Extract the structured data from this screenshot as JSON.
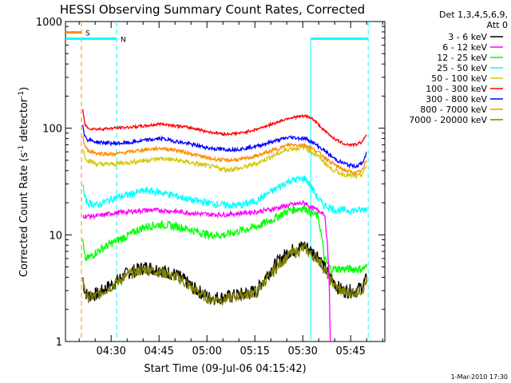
{
  "chart_data": {
    "type": "line",
    "title": "HESSI Observing Summary Count Rates, Corrected",
    "xlabel": "Start Time (09-Jul-06 04:15:42)",
    "ylabel_main": "Corrected Count Rate (s",
    "ylabel_sup1": "-1",
    "ylabel_mid": " detector",
    "ylabel_sup2": "-1",
    "ylabel_end": ")",
    "y_scale": "log",
    "ylim": [
      1,
      1000
    ],
    "xlim_min": [
      0,
      100
    ],
    "x_unit": "minutes after 04:15:42",
    "y_tick_labels": [
      {
        "value": 1,
        "label": "1"
      },
      {
        "value": 10,
        "label": "10"
      },
      {
        "value": 100,
        "label": "100"
      },
      {
        "value": 1000,
        "label": "1000"
      }
    ],
    "x_tick_labels": [
      {
        "t": 14.3,
        "label": "04:30"
      },
      {
        "t": 29.3,
        "label": "04:45"
      },
      {
        "t": 44.3,
        "label": "05:00"
      },
      {
        "t": 59.3,
        "label": "05:15"
      },
      {
        "t": 74.3,
        "label": "05:30"
      },
      {
        "t": 89.3,
        "label": "05:45"
      }
    ],
    "legend_header": [
      "Det 1,3,4,5,6,9,",
      "Att 0"
    ],
    "legend_position": "right-outside",
    "series": [
      {
        "name": "3 - 6 keV",
        "color": "#000000"
      },
      {
        "name": "6 - 12 keV",
        "color": "#ff00ff"
      },
      {
        "name": "12 - 25 keV",
        "color": "#00ff00"
      },
      {
        "name": "25 - 50 keV",
        "color": "#00ffff"
      },
      {
        "name": "50 - 100 keV",
        "color": "#d2c800"
      },
      {
        "name": "100 - 300 keV",
        "color": "#ff0000"
      },
      {
        "name": "300 - 800 keV",
        "color": "#0000ff"
      },
      {
        "name": "800 - 7000 keV",
        "color": "#ff8c00"
      },
      {
        "name": "7000 - 20000 keV",
        "color": "#808000"
      }
    ],
    "curves": {
      "x": [
        5.4,
        6,
        7,
        10,
        15,
        20,
        25,
        30,
        35,
        40,
        45,
        50,
        55,
        60,
        65,
        70,
        75,
        77,
        79,
        81,
        83,
        85,
        87,
        89,
        91,
        93,
        94.5
      ],
      "red": [
        150,
        110,
        100,
        98,
        100,
        102,
        105,
        110,
        105,
        100,
        92,
        88,
        90,
        98,
        110,
        125,
        130,
        125,
        110,
        95,
        85,
        77,
        72,
        70,
        70,
        75,
        90
      ],
      "blue": [
        110,
        85,
        78,
        74,
        72,
        73,
        77,
        80,
        75,
        70,
        65,
        63,
        64,
        68,
        75,
        82,
        80,
        75,
        68,
        62,
        55,
        50,
        47,
        45,
        44,
        47,
        60
      ],
      "orange": [
        85,
        68,
        62,
        58,
        57,
        60,
        63,
        65,
        62,
        57,
        52,
        50,
        51,
        55,
        62,
        70,
        70,
        65,
        60,
        54,
        48,
        44,
        41,
        39,
        38,
        40,
        52
      ],
      "yellow": [
        65,
        55,
        50,
        46,
        46,
        48,
        50,
        52,
        50,
        47,
        44,
        41,
        42,
        47,
        55,
        64,
        66,
        60,
        55,
        48,
        42,
        39,
        37,
        36,
        35,
        37,
        45
      ],
      "cyan": [
        30,
        22,
        20,
        19,
        22,
        24,
        26,
        25,
        23,
        21,
        20,
        19,
        19,
        21,
        26,
        32,
        34,
        28,
        22,
        19,
        18,
        17,
        17,
        17,
        17,
        17,
        18
      ],
      "magenta": [
        15,
        15,
        15,
        15,
        16,
        16.5,
        17,
        17,
        16.5,
        16,
        15.5,
        15.5,
        16,
        16.5,
        17.5,
        19,
        20,
        18,
        17,
        16,
        0,
        0,
        0,
        0,
        0,
        0,
        0
      ],
      "green": [
        9,
        6,
        6,
        7,
        8.5,
        10,
        12,
        12.5,
        12,
        11,
        10,
        10,
        11,
        12,
        14,
        17,
        18,
        16,
        15,
        6,
        4.8,
        4.8,
        4.8,
        4.8,
        4.8,
        4.8,
        5
      ],
      "black": [
        4,
        3,
        2.7,
        2.8,
        3.5,
        4.5,
        5,
        4.7,
        4.2,
        3.2,
        2.6,
        2.6,
        2.8,
        3,
        5,
        7,
        8,
        7,
        6.5,
        5,
        4,
        3.3,
        3,
        3,
        3,
        3.3,
        4
      ],
      "olive": [
        4,
        3,
        2.6,
        2.7,
        3.4,
        4.3,
        4.8,
        4.5,
        4,
        3.1,
        2.5,
        2.5,
        2.7,
        2.9,
        4.5,
        6.5,
        7.5,
        6.5,
        6,
        4.8,
        3.8,
        3.2,
        2.9,
        2.9,
        2.9,
        3.1,
        3.8
      ]
    },
    "flags": [
      {
        "label": "S",
        "color": "#ff8c00",
        "t_start": 0,
        "t_end": 5,
        "level": 790,
        "dashed_line_t": 5
      },
      {
        "label": "N",
        "color": "#00ffff",
        "t_start": 0,
        "t_end": 16,
        "level": 690,
        "dashed_line_t": 16
      },
      {
        "label": "",
        "color": "#00ffff",
        "t_start": 76.8,
        "t_end": 94.8,
        "level": 690,
        "dashed_line_t": 94.8
      }
    ],
    "cyan_solid_line_t": 76.8
  },
  "footer_date": "1-Mar-2010 17:30"
}
